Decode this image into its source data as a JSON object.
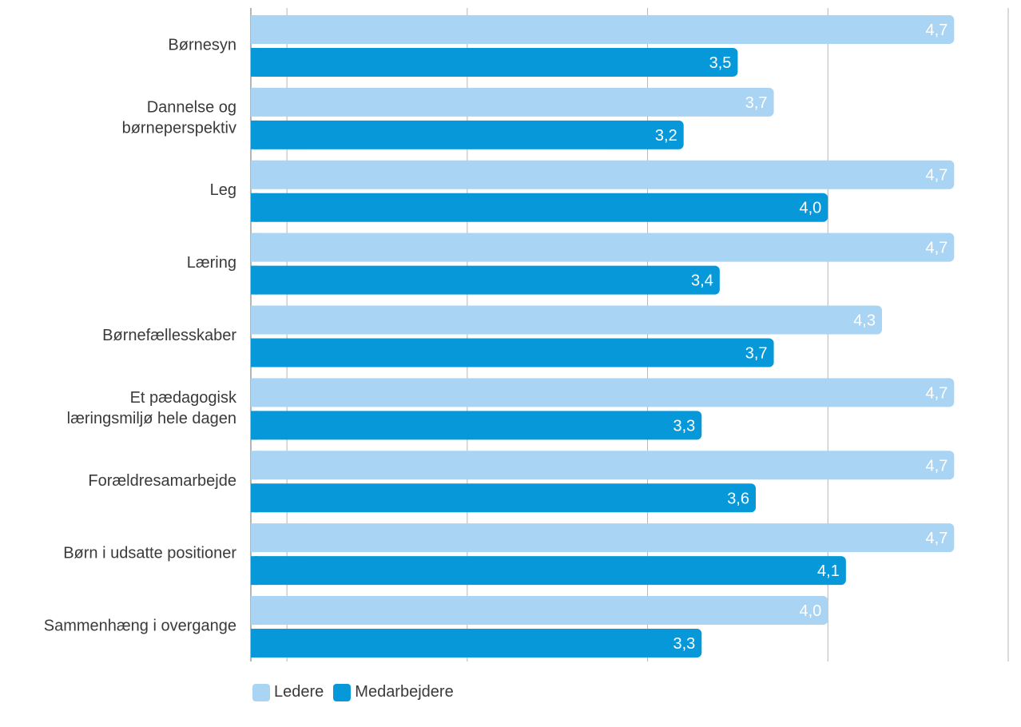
{
  "chart_data": {
    "type": "bar",
    "orientation": "horizontal",
    "title": "",
    "xlabel": "",
    "ylabel": "",
    "xlim": [
      0.8,
      5
    ],
    "x_ticks": [
      "1",
      "2",
      "3",
      "4",
      "5"
    ],
    "grid": true,
    "legend_placement": "bottom-left",
    "categories": [
      [
        "Børnesyn"
      ],
      [
        "Dannelse og",
        "børneperspektiv"
      ],
      [
        "Leg"
      ],
      [
        "Læring"
      ],
      [
        "Børnefællesskaber"
      ],
      [
        "Et pædagogisk",
        "læringsmiljø hele dagen"
      ],
      [
        "Forældresamarbejde"
      ],
      [
        "Børn i udsatte positioner"
      ],
      [
        "Sammenhæng i overgange"
      ]
    ],
    "series": [
      {
        "name": "Ledere",
        "color": "#a9d4f3",
        "values": [
          4.7,
          3.7,
          4.7,
          4.7,
          4.3,
          4.7,
          4.7,
          4.7,
          4.0
        ],
        "labels": [
          "4,7",
          "3,7",
          "4,7",
          "4,7",
          "4,3",
          "4,7",
          "4,7",
          "4,7",
          "4,0"
        ]
      },
      {
        "name": "Medarbejdere",
        "color": "#0798d9",
        "values": [
          3.5,
          3.2,
          4.0,
          3.4,
          3.7,
          3.3,
          3.6,
          4.1,
          3.3
        ],
        "labels": [
          "3,5",
          "3,2",
          "4,0",
          "3,4",
          "3,7",
          "3,3",
          "3,6",
          "4,1",
          "3,3"
        ]
      }
    ]
  }
}
